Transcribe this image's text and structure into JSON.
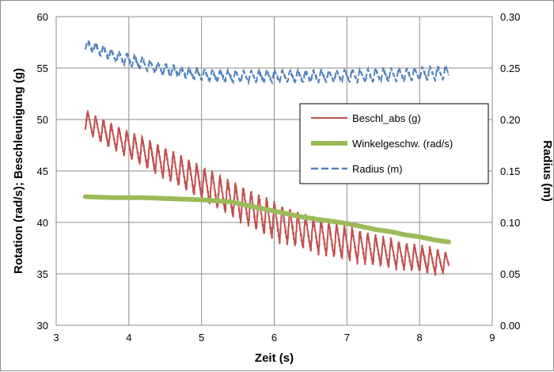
{
  "chart_data": {
    "type": "line",
    "xlabel": "Zeit (s)",
    "ylabel": "Rotation (rad/s); Beschleunigung (g)",
    "y2label": "Radius (m)",
    "xlim": [
      3,
      9
    ],
    "ylim": [
      30,
      60
    ],
    "y2lim": [
      0,
      0.3
    ],
    "x_ticks": [
      "3",
      "4",
      "5",
      "6",
      "7",
      "8",
      "9"
    ],
    "y_ticks": [
      "30",
      "35",
      "40",
      "45",
      "50",
      "55",
      "60"
    ],
    "y2_ticks": [
      "0.00",
      "0.05",
      "0.10",
      "0.15",
      "0.20",
      "0.25",
      "0.30"
    ],
    "grid": true,
    "legend_position": "right-center",
    "series": [
      {
        "name": "Beschl_abs (g)",
        "color": "#c0504d",
        "axis": "left",
        "x": [
          3.4,
          3.5,
          3.6,
          3.7,
          3.8,
          3.9,
          4.0,
          4.1,
          4.2,
          4.3,
          4.4,
          4.5,
          4.6,
          4.7,
          4.8,
          4.9,
          5.0,
          5.1,
          5.2,
          5.3,
          5.4,
          5.5,
          5.6,
          5.7,
          5.8,
          5.9,
          6.0,
          6.1,
          6.2,
          6.3,
          6.4,
          6.5,
          6.6,
          6.7,
          6.8,
          6.9,
          7.0,
          7.1,
          7.2,
          7.3,
          7.4,
          7.5,
          7.6,
          7.7,
          7.8,
          7.9,
          8.0,
          8.1,
          8.2,
          8.3,
          8.4
        ],
        "y_upper": [
          51.0,
          50.5,
          50.2,
          49.8,
          49.5,
          49.2,
          48.9,
          48.6,
          48.3,
          48.0,
          47.6,
          47.3,
          47.0,
          46.6,
          46.2,
          45.9,
          45.5,
          45.2,
          44.8,
          44.4,
          44.1,
          43.7,
          43.4,
          43.0,
          42.7,
          42.4,
          42.0,
          41.7,
          41.4,
          41.1,
          40.8,
          40.6,
          40.4,
          40.2,
          40.0,
          39.8,
          39.6,
          39.4,
          39.2,
          39.0,
          38.8,
          38.6,
          38.4,
          38.2,
          38.0,
          37.9,
          37.8,
          37.6,
          37.5,
          37.3,
          37.0
        ],
        "y_lower": [
          49.0,
          48.3,
          47.8,
          47.4,
          47.0,
          46.6,
          46.2,
          45.8,
          45.4,
          45.0,
          44.6,
          44.2,
          43.8,
          43.4,
          43.0,
          42.6,
          42.2,
          41.8,
          41.4,
          41.0,
          40.6,
          40.2,
          39.8,
          39.4,
          39.0,
          38.6,
          38.3,
          38.0,
          37.8,
          37.6,
          37.4,
          37.2,
          37.0,
          36.8,
          36.6,
          36.5,
          36.3,
          36.2,
          36.0,
          35.9,
          35.8,
          35.7,
          35.6,
          35.5,
          35.4,
          35.3,
          35.2,
          35.1,
          35.0,
          35.0,
          35.2
        ],
        "oscillation_period_s": 0.107
      },
      {
        "name": "Winkelgeschw. (rad/s)",
        "color": "#9bbb59",
        "axis": "left",
        "x": [
          3.4,
          3.8,
          4.2,
          4.6,
          5.0,
          5.4,
          5.6,
          5.8,
          6.0,
          6.2,
          6.4,
          6.6,
          6.8,
          7.0,
          7.2,
          7.4,
          7.6,
          7.8,
          8.0,
          8.2,
          8.4
        ],
        "y": [
          42.5,
          42.4,
          42.4,
          42.3,
          42.2,
          42.0,
          41.7,
          41.4,
          41.1,
          40.8,
          40.5,
          40.3,
          40.1,
          39.9,
          39.6,
          39.3,
          39.1,
          38.8,
          38.6,
          38.3,
          38.1
        ]
      },
      {
        "name": "Radius (m)",
        "color": "#4f81bd",
        "axis": "right",
        "x": [
          3.4,
          3.6,
          3.8,
          4.0,
          4.2,
          4.4,
          4.6,
          4.8,
          5.0,
          5.2,
          5.4,
          5.6,
          5.8,
          6.0,
          6.2,
          6.4,
          6.6,
          6.8,
          7.0,
          7.2,
          7.4,
          7.6,
          7.8,
          8.0,
          8.2,
          8.4
        ],
        "y_upper": [
          0.278,
          0.273,
          0.268,
          0.264,
          0.26,
          0.256,
          0.253,
          0.25,
          0.249,
          0.248,
          0.248,
          0.248,
          0.248,
          0.248,
          0.248,
          0.248,
          0.248,
          0.248,
          0.249,
          0.249,
          0.25,
          0.25,
          0.25,
          0.251,
          0.252,
          0.252
        ],
        "y_lower": [
          0.268,
          0.262,
          0.256,
          0.252,
          0.248,
          0.244,
          0.242,
          0.24,
          0.238,
          0.237,
          0.236,
          0.236,
          0.236,
          0.236,
          0.236,
          0.236,
          0.236,
          0.236,
          0.236,
          0.236,
          0.236,
          0.237,
          0.237,
          0.238,
          0.238,
          0.239
        ],
        "oscillation_period_s": 0.107
      }
    ]
  }
}
